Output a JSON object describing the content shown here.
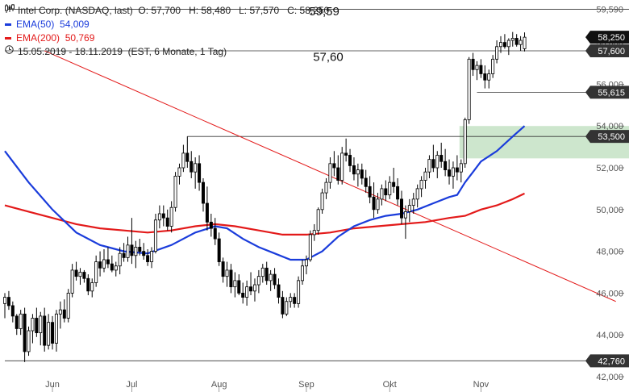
{
  "legend": {
    "instrument": "Intel Corp. (NASDAQ, last)",
    "ohlc": "O: 57,700   H: 58,480   L: 57,570   C: 58,250",
    "ema50_label": "EMA(50)",
    "ema50_value": "54,009",
    "ema200_label": "EMA(200)",
    "ema200_value": "50,769",
    "period": "15.05.2019 - 18.11.2019",
    "period_note": "(EST, 6 Monate, 1 Tag)",
    "candle_icon": "candlestick-icon",
    "clock_icon": "clock-icon"
  },
  "colors": {
    "up": "#ffffff",
    "down": "#000000",
    "wick": "#000000",
    "ema50": "#1a3cdb",
    "ema200": "#e31a1a",
    "trendline": "#e31a1a",
    "zone": "#c8e3c8",
    "badge": "#333333"
  },
  "chart_data": {
    "type": "candlestick",
    "ylim": [
      42,
      59.8
    ],
    "yticks": [
      {
        "v": 44,
        "label": "44,000"
      },
      {
        "v": 46,
        "label": "46,000"
      },
      {
        "v": 48,
        "label": "48,000"
      },
      {
        "v": 50,
        "label": "50,000"
      },
      {
        "v": 52,
        "label": "52,000"
      },
      {
        "v": 54,
        "label": "54,000"
      },
      {
        "v": 56,
        "label": "56,000"
      },
      {
        "v": 58,
        "label": "58,000"
      },
      {
        "v": 42,
        "label": "42,000"
      }
    ],
    "x_months": [
      {
        "i": 12,
        "label": "Jun"
      },
      {
        "i": 32,
        "label": "Jul"
      },
      {
        "i": 54,
        "label": "Aug"
      },
      {
        "i": 76,
        "label": "Sep"
      },
      {
        "i": 97,
        "label": "Okt"
      },
      {
        "i": 120,
        "label": "Nov"
      }
    ],
    "n": 132,
    "candles": [
      [
        0,
        45.5,
        46.0,
        44.8,
        45.8
      ],
      [
        1,
        45.8,
        46.1,
        45.2,
        45.4
      ],
      [
        2,
        45.4,
        45.6,
        44.6,
        44.9
      ],
      [
        3,
        44.9,
        45.0,
        44.0,
        44.3
      ],
      [
        4,
        44.3,
        45.2,
        44.0,
        45.0
      ],
      [
        5,
        45.0,
        45.3,
        42.7,
        43.2
      ],
      [
        6,
        43.2,
        44.4,
        43.0,
        44.2
      ],
      [
        7,
        44.2,
        45.0,
        43.6,
        44.8
      ],
      [
        8,
        44.8,
        45.3,
        43.9,
        44.1
      ],
      [
        9,
        44.1,
        45.1,
        43.5,
        44.9
      ],
      [
        10,
        44.9,
        45.3,
        43.2,
        43.5
      ],
      [
        11,
        43.5,
        45.0,
        43.3,
        44.6
      ],
      [
        12,
        44.6,
        44.9,
        43.3,
        43.6
      ],
      [
        13,
        43.6,
        45.2,
        43.2,
        45.0
      ],
      [
        14,
        45.0,
        45.6,
        44.3,
        45.2
      ],
      [
        15,
        45.2,
        45.7,
        44.6,
        44.8
      ],
      [
        16,
        44.8,
        46.2,
        44.6,
        46.0
      ],
      [
        17,
        46.0,
        47.4,
        45.8,
        47.1
      ],
      [
        18,
        47.1,
        47.5,
        46.6,
        46.8
      ],
      [
        19,
        46.8,
        47.2,
        46.4,
        47.0
      ],
      [
        20,
        47.0,
        47.1,
        46.5,
        46.7
      ],
      [
        21,
        46.7,
        46.9,
        45.9,
        46.1
      ],
      [
        22,
        46.1,
        46.7,
        45.8,
        46.5
      ],
      [
        23,
        46.5,
        47.8,
        46.3,
        47.5
      ],
      [
        24,
        47.5,
        48.0,
        46.8,
        47.2
      ],
      [
        25,
        47.2,
        48.1,
        47.0,
        47.6
      ],
      [
        26,
        47.6,
        48.2,
        47.2,
        47.4
      ],
      [
        27,
        47.4,
        47.8,
        47.0,
        47.1
      ],
      [
        28,
        47.1,
        47.5,
        46.8,
        47.3
      ],
      [
        29,
        47.3,
        48.2,
        46.9,
        47.9
      ],
      [
        30,
        47.9,
        48.4,
        47.5,
        47.7
      ],
      [
        31,
        47.7,
        48.7,
        47.5,
        48.3
      ],
      [
        32,
        48.3,
        49.6,
        47.4,
        47.8
      ],
      [
        33,
        47.8,
        48.5,
        47.2,
        48.2
      ],
      [
        34,
        48.2,
        48.6,
        47.8,
        48.0
      ],
      [
        35,
        48.0,
        48.4,
        47.6,
        47.8
      ],
      [
        36,
        47.8,
        48.1,
        47.3,
        47.5
      ],
      [
        37,
        47.5,
        48.2,
        47.2,
        48.0
      ],
      [
        38,
        48.0,
        49.8,
        47.9,
        49.5
      ],
      [
        39,
        49.5,
        50.2,
        49.1,
        49.8
      ],
      [
        40,
        49.8,
        50.2,
        49.2,
        49.6
      ],
      [
        41,
        49.6,
        50.0,
        49.0,
        49.2
      ],
      [
        42,
        49.2,
        50.4,
        48.9,
        50.1
      ],
      [
        43,
        50.1,
        51.8,
        49.9,
        51.6
      ],
      [
        44,
        51.6,
        52.2,
        51.2,
        52.0
      ],
      [
        45,
        52.0,
        53.1,
        51.8,
        52.7
      ],
      [
        46,
        52.7,
        53.5,
        52.0,
        52.3
      ],
      [
        47,
        52.3,
        52.8,
        51.5,
        51.8
      ],
      [
        48,
        51.8,
        52.5,
        51.0,
        52.2
      ],
      [
        49,
        52.2,
        52.6,
        50.9,
        51.3
      ],
      [
        50,
        51.3,
        51.5,
        49.9,
        50.3
      ],
      [
        51,
        50.3,
        51.1,
        49.0,
        49.4
      ],
      [
        52,
        49.4,
        49.8,
        48.7,
        49.1
      ],
      [
        53,
        49.1,
        49.6,
        48.3,
        48.6
      ],
      [
        54,
        48.6,
        48.9,
        47.3,
        47.5
      ],
      [
        55,
        47.5,
        47.7,
        46.5,
        46.8
      ],
      [
        56,
        46.8,
        47.5,
        46.3,
        47.1
      ],
      [
        57,
        47.1,
        47.4,
        46.0,
        46.3
      ],
      [
        58,
        46.3,
        47.0,
        45.8,
        46.6
      ],
      [
        59,
        46.6,
        46.9,
        45.9,
        46.0
      ],
      [
        60,
        46.0,
        46.5,
        45.5,
        45.8
      ],
      [
        61,
        45.8,
        46.6,
        45.4,
        46.3
      ],
      [
        62,
        46.3,
        47.0,
        45.9,
        46.1
      ],
      [
        63,
        46.1,
        46.7,
        45.6,
        46.4
      ],
      [
        64,
        46.4,
        47.1,
        46.0,
        46.8
      ],
      [
        65,
        46.8,
        47.4,
        46.5,
        47.2
      ],
      [
        66,
        47.2,
        47.5,
        46.4,
        46.6
      ],
      [
        67,
        46.6,
        47.1,
        46.1,
        46.9
      ],
      [
        68,
        46.9,
        47.2,
        46.2,
        46.4
      ],
      [
        69,
        46.4,
        46.7,
        45.5,
        45.8
      ],
      [
        70,
        45.8,
        46.1,
        44.8,
        45.0
      ],
      [
        71,
        45.0,
        45.8,
        44.9,
        45.6
      ],
      [
        72,
        45.6,
        46.0,
        45.3,
        45.8
      ],
      [
        73,
        45.8,
        46.0,
        45.3,
        45.5
      ],
      [
        74,
        45.5,
        46.8,
        45.3,
        46.6
      ],
      [
        75,
        46.6,
        47.6,
        46.4,
        47.3
      ],
      [
        76,
        47.3,
        47.8,
        46.9,
        47.6
      ],
      [
        77,
        47.6,
        49.0,
        47.5,
        48.8
      ],
      [
        78,
        48.8,
        49.3,
        48.5,
        49.0
      ],
      [
        79,
        49.0,
        50.1,
        48.8,
        50.0
      ],
      [
        80,
        50.0,
        51.0,
        49.8,
        50.8
      ],
      [
        81,
        50.8,
        51.5,
        50.5,
        51.3
      ],
      [
        82,
        51.3,
        52.5,
        51.0,
        52.2
      ],
      [
        83,
        52.2,
        52.8,
        51.6,
        52.0
      ],
      [
        84,
        52.0,
        52.6,
        51.2,
        51.4
      ],
      [
        85,
        51.4,
        53.0,
        51.2,
        52.7
      ],
      [
        86,
        52.7,
        53.4,
        52.3,
        52.6
      ],
      [
        87,
        52.6,
        52.9,
        51.8,
        52.1
      ],
      [
        88,
        52.1,
        52.5,
        51.4,
        51.7
      ],
      [
        89,
        51.7,
        52.2,
        51.1,
        51.9
      ],
      [
        90,
        51.9,
        52.2,
        51.2,
        51.5
      ],
      [
        91,
        51.5,
        51.9,
        50.8,
        51.1
      ],
      [
        92,
        51.1,
        51.6,
        50.3,
        50.6
      ],
      [
        93,
        50.6,
        51.3,
        49.6,
        50.0
      ],
      [
        94,
        50.0,
        50.8,
        49.8,
        50.5
      ],
      [
        95,
        50.5,
        51.2,
        50.2,
        51.0
      ],
      [
        96,
        51.0,
        51.4,
        50.4,
        50.7
      ],
      [
        97,
        50.7,
        51.6,
        50.5,
        51.3
      ],
      [
        98,
        51.3,
        52.0,
        50.8,
        51.1
      ],
      [
        99,
        51.1,
        51.5,
        50.2,
        50.5
      ],
      [
        100,
        50.5,
        50.9,
        49.3,
        49.6
      ],
      [
        101,
        49.6,
        50.2,
        48.6,
        49.9
      ],
      [
        102,
        49.9,
        50.5,
        49.4,
        50.2
      ],
      [
        103,
        50.2,
        50.8,
        49.8,
        50.5
      ],
      [
        104,
        50.5,
        51.2,
        50.1,
        51.0
      ],
      [
        105,
        51.0,
        51.6,
        50.6,
        51.4
      ],
      [
        106,
        51.4,
        52.0,
        51.0,
        51.8
      ],
      [
        107,
        51.8,
        52.6,
        51.5,
        52.4
      ],
      [
        108,
        52.4,
        53.1,
        51.8,
        52.0
      ],
      [
        109,
        52.0,
        52.8,
        51.5,
        52.6
      ],
      [
        110,
        52.6,
        53.2,
        52.0,
        52.3
      ],
      [
        111,
        52.3,
        52.9,
        51.6,
        51.9
      ],
      [
        112,
        51.9,
        52.4,
        51.2,
        51.6
      ],
      [
        113,
        51.6,
        52.3,
        51.0,
        52.0
      ],
      [
        114,
        52.0,
        52.6,
        51.4,
        51.8
      ],
      [
        115,
        51.8,
        52.4,
        51.3,
        52.2
      ],
      [
        116,
        52.2,
        54.4,
        52.0,
        54.3
      ],
      [
        117,
        54.3,
        57.3,
        54.1,
        57.2
      ],
      [
        118,
        57.2,
        57.5,
        56.4,
        56.7
      ],
      [
        119,
        56.7,
        57.1,
        56.2,
        56.9
      ],
      [
        120,
        56.9,
        57.2,
        56.3,
        56.5
      ],
      [
        121,
        56.5,
        56.9,
        55.8,
        56.2
      ],
      [
        122,
        56.2,
        56.7,
        55.8,
        56.5
      ],
      [
        123,
        56.5,
        57.4,
        56.3,
        57.2
      ],
      [
        124,
        57.2,
        58.1,
        57.0,
        57.8
      ],
      [
        125,
        57.8,
        58.3,
        57.5,
        58.0
      ],
      [
        126,
        58.0,
        58.4,
        57.7,
        57.8
      ],
      [
        127,
        57.8,
        58.2,
        57.4,
        58.1
      ],
      [
        128,
        58.1,
        58.5,
        57.8,
        58.2
      ],
      [
        129,
        58.2,
        58.4,
        57.8,
        57.9
      ],
      [
        130,
        57.9,
        58.3,
        57.6,
        58.1
      ],
      [
        131,
        57.7,
        58.48,
        57.57,
        58.25
      ]
    ],
    "ema50": [
      [
        0,
        52.8
      ],
      [
        6,
        51.3
      ],
      [
        12,
        50.0
      ],
      [
        18,
        48.9
      ],
      [
        24,
        48.3
      ],
      [
        30,
        48.0
      ],
      [
        36,
        47.9
      ],
      [
        42,
        48.3
      ],
      [
        48,
        48.9
      ],
      [
        53,
        49.2
      ],
      [
        56,
        49.1
      ],
      [
        60,
        48.6
      ],
      [
        64,
        48.2
      ],
      [
        68,
        47.9
      ],
      [
        72,
        47.6
      ],
      [
        76,
        47.6
      ],
      [
        80,
        48.0
      ],
      [
        84,
        48.7
      ],
      [
        88,
        49.2
      ],
      [
        92,
        49.5
      ],
      [
        96,
        49.7
      ],
      [
        100,
        49.8
      ],
      [
        104,
        50.0
      ],
      [
        108,
        50.3
      ],
      [
        112,
        50.6
      ],
      [
        114,
        50.7
      ],
      [
        116,
        51.3
      ],
      [
        118,
        51.8
      ],
      [
        120,
        52.3
      ],
      [
        124,
        52.8
      ],
      [
        128,
        53.5
      ],
      [
        131,
        54.0
      ]
    ],
    "ema200": [
      [
        0,
        50.2
      ],
      [
        6,
        49.9
      ],
      [
        12,
        49.6
      ],
      [
        18,
        49.3
      ],
      [
        24,
        49.1
      ],
      [
        30,
        49.0
      ],
      [
        36,
        48.9
      ],
      [
        42,
        49.0
      ],
      [
        48,
        49.2
      ],
      [
        53,
        49.3
      ],
      [
        58,
        49.2
      ],
      [
        64,
        49.0
      ],
      [
        70,
        48.8
      ],
      [
        76,
        48.8
      ],
      [
        82,
        48.9
      ],
      [
        88,
        49.1
      ],
      [
        94,
        49.2
      ],
      [
        100,
        49.3
      ],
      [
        106,
        49.4
      ],
      [
        112,
        49.6
      ],
      [
        116,
        49.7
      ],
      [
        120,
        50.0
      ],
      [
        124,
        50.2
      ],
      [
        128,
        50.5
      ],
      [
        131,
        50.769
      ]
    ],
    "trendline": {
      "from": [
        10,
        57.6
      ],
      "to": [
        154,
        45.6
      ]
    },
    "hlines": [
      {
        "v": 59.59,
        "x0": 0,
        "label": "59,590",
        "badge": false
      },
      {
        "v": 57.6,
        "x0": 0,
        "label": "57,600",
        "badge": true
      },
      {
        "v": 55.615,
        "x0": 119,
        "label": "55,615",
        "badge": true
      },
      {
        "v": 53.5,
        "x0": 46,
        "label": "53,500",
        "badge": true
      },
      {
        "v": 42.76,
        "x0": 0,
        "label": "42,760",
        "badge": true
      }
    ],
    "current_price": {
      "v": 58.25,
      "label": "58,250"
    },
    "zone": {
      "i0": 115,
      "y_top": 54.0,
      "y_bottom": 52.45
    },
    "annotations": [
      {
        "text": "59,59",
        "i": 80.5,
        "v": 59.5
      },
      {
        "text": "57,60",
        "i": 81.5,
        "v": 57.3
      }
    ]
  }
}
